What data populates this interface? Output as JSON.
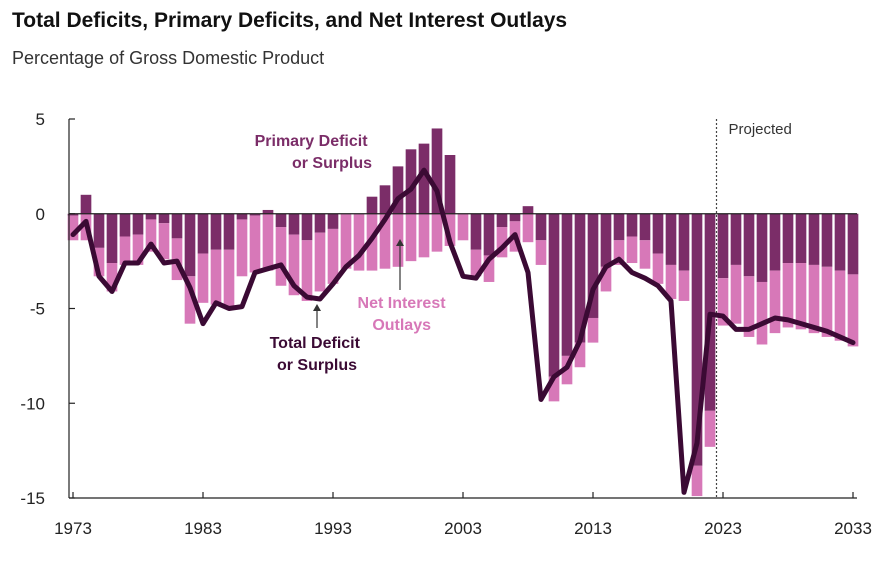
{
  "title": "Total Deficits, Primary Deficits, and Net Interest Outlays",
  "subtitle": "Percentage of Gross Domestic Product",
  "colors": {
    "primary": "#7B2D68",
    "net_interest": "#D778B8",
    "total": "#3B0A34",
    "axis": "#222222"
  },
  "chart_data": {
    "type": "bar",
    "stacked": true,
    "x": [
      1973,
      1974,
      1975,
      1976,
      1977,
      1978,
      1979,
      1980,
      1981,
      1982,
      1983,
      1984,
      1985,
      1986,
      1987,
      1988,
      1989,
      1990,
      1991,
      1992,
      1993,
      1994,
      1995,
      1996,
      1997,
      1998,
      1999,
      2000,
      2001,
      2002,
      2003,
      2004,
      2005,
      2006,
      2007,
      2008,
      2009,
      2010,
      2011,
      2012,
      2013,
      2014,
      2015,
      2016,
      2017,
      2018,
      2019,
      2020,
      2021,
      2022,
      2023,
      2024,
      2025,
      2026,
      2027,
      2028,
      2029,
      2030,
      2031,
      2032,
      2033
    ],
    "ylim": [
      -15,
      5
    ],
    "yticks": [
      5,
      0,
      -5,
      -10,
      -15
    ],
    "xticks": [
      1973,
      1983,
      1993,
      2003,
      2013,
      2023,
      2033
    ],
    "series": [
      {
        "name": "Primary Deficit or Surplus",
        "type": "bar",
        "values": [
          -0.1,
          1.0,
          -1.8,
          -2.6,
          -1.2,
          -1.1,
          -0.3,
          -0.5,
          -1.3,
          -3.3,
          -2.1,
          -1.9,
          -1.9,
          -0.3,
          -0.1,
          0.2,
          -0.7,
          -1.1,
          -1.4,
          -1.0,
          -0.8,
          0.0,
          0.0,
          0.9,
          1.5,
          2.5,
          3.4,
          3.7,
          4.5,
          3.1,
          0.0,
          -1.9,
          -2.2,
          -0.7,
          -0.4,
          0.4,
          -1.4,
          -8.6,
          -7.5,
          -6.8,
          -5.5,
          -2.8,
          -1.4,
          -1.2,
          -1.4,
          -2.1,
          -2.7,
          -3.0,
          -13.3,
          -10.4,
          -3.4,
          -2.7,
          -3.3,
          -3.6,
          -3.0,
          -2.6,
          -2.6,
          -2.7,
          -2.8,
          -3.0,
          -3.2
        ],
        "color": "#7B2D68"
      },
      {
        "name": "Net Interest Outlays",
        "type": "bar",
        "values": [
          -1.3,
          -1.4,
          -1.5,
          -1.5,
          -1.5,
          -1.6,
          -1.7,
          -1.9,
          -2.2,
          -2.5,
          -2.6,
          -2.9,
          -3.0,
          -3.0,
          -3.0,
          -3.0,
          -3.1,
          -3.2,
          -3.2,
          -3.1,
          -2.9,
          -2.9,
          -3.0,
          -3.0,
          -2.9,
          -2.8,
          -2.5,
          -2.3,
          -2.0,
          -1.7,
          -1.4,
          -1.4,
          -1.4,
          -1.6,
          -1.6,
          -1.5,
          -1.3,
          -1.3,
          -1.5,
          -1.3,
          -1.3,
          -1.3,
          -1.3,
          -1.4,
          -1.5,
          -1.6,
          -1.8,
          -1.6,
          -1.6,
          -1.9,
          -2.5,
          -3.1,
          -3.2,
          -3.3,
          -3.3,
          -3.4,
          -3.5,
          -3.6,
          -3.7,
          -3.7,
          -3.8
        ],
        "color": "#D778B8"
      },
      {
        "name": "Total Deficit or Surplus",
        "type": "line",
        "values": [
          -1.1,
          -0.4,
          -3.3,
          -4.1,
          -2.6,
          -2.6,
          -1.6,
          -2.6,
          -2.5,
          -3.9,
          -5.8,
          -4.7,
          -5.0,
          -4.9,
          -3.1,
          -2.9,
          -2.7,
          -3.8,
          -4.4,
          -4.5,
          -3.7,
          -2.8,
          -2.2,
          -1.3,
          -0.3,
          0.8,
          1.3,
          2.3,
          1.2,
          -1.5,
          -3.3,
          -3.4,
          -2.4,
          -1.8,
          -1.1,
          -3.1,
          -9.8,
          -8.6,
          -8.1,
          -6.7,
          -4.0,
          -2.8,
          -2.4,
          -3.1,
          -3.4,
          -3.8,
          -4.6,
          -14.7,
          -12.1,
          -5.3,
          -5.4,
          -6.1,
          -6.1,
          -5.8,
          -5.5,
          -5.6,
          -5.8,
          -6.0,
          -6.2,
          -6.5,
          -6.8
        ],
        "color": "#3B0A34"
      }
    ],
    "annotations": {
      "primary": [
        "Primary Deficit",
        "or Surplus"
      ],
      "net_interest": [
        "Net Interest",
        "Outlays"
      ],
      "total": [
        "Total Deficit",
        "or Surplus"
      ],
      "projected": "Projected"
    },
    "projection_start": 2023
  }
}
